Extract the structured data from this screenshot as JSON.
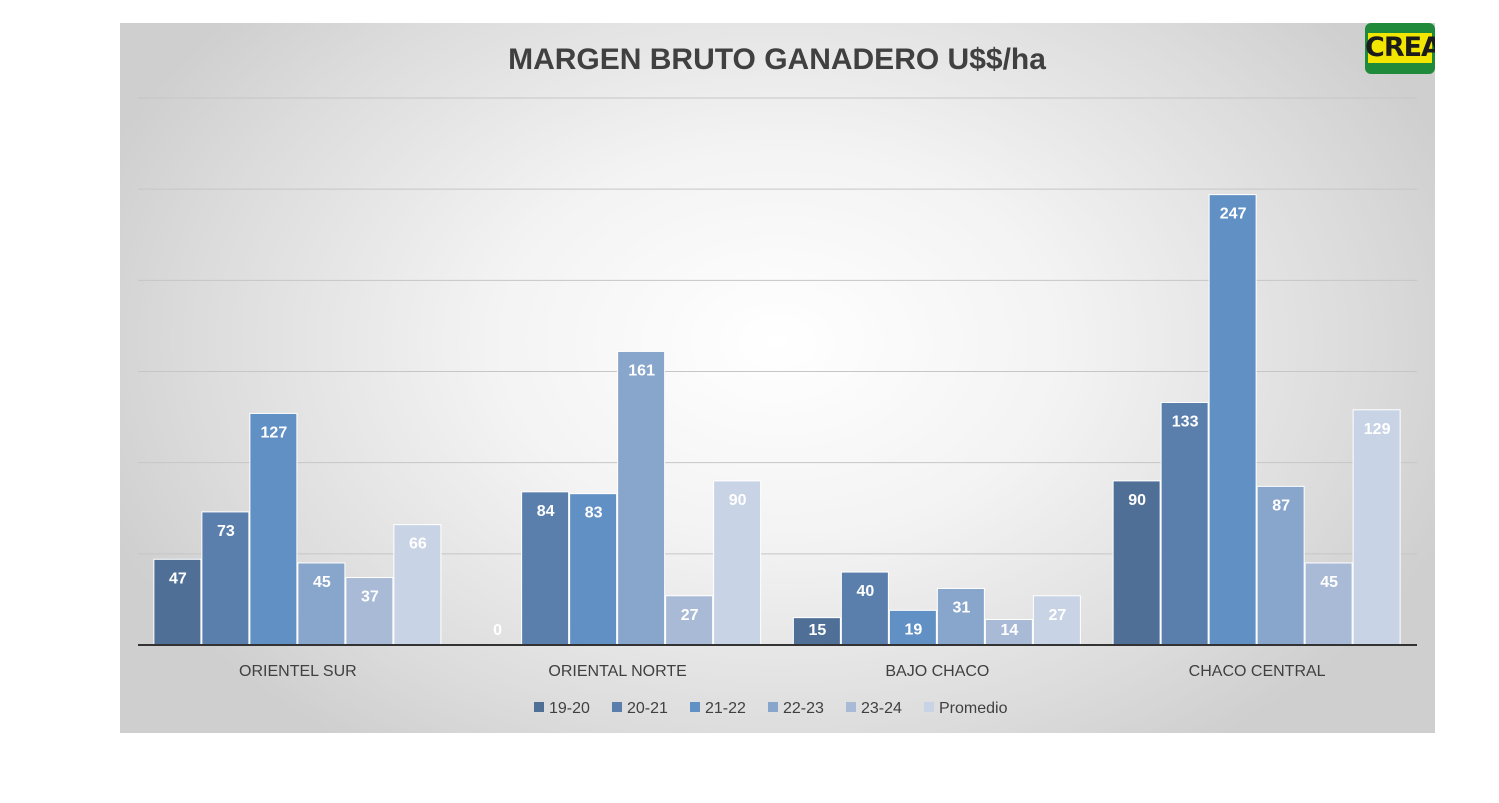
{
  "logo": {
    "text": "CREA"
  },
  "chart_data": {
    "type": "bar",
    "title": "MARGEN BRUTO GANADERO U$$/ha",
    "xlabel": "",
    "ylabel": "",
    "ylim": [
      0,
      300
    ],
    "grid": true,
    "legend_position": "bottom",
    "categories": [
      "ORIENTEL SUR",
      "ORIENTAL NORTE",
      "BAJO CHACO",
      "CHACO CENTRAL"
    ],
    "series": [
      {
        "name": "19-20",
        "color": "#4f6f96",
        "values": [
          47,
          0,
          15,
          90
        ]
      },
      {
        "name": "20-21",
        "color": "#5a7fac",
        "values": [
          73,
          84,
          40,
          133
        ]
      },
      {
        "name": "21-22",
        "color": "#6190c4",
        "values": [
          127,
          83,
          19,
          247
        ]
      },
      {
        "name": "22-23",
        "color": "#88a5cc",
        "values": [
          45,
          161,
          31,
          87
        ]
      },
      {
        "name": "23-24",
        "color": "#a9bad7",
        "values": [
          37,
          27,
          14,
          45
        ]
      },
      {
        "name": "Promedio",
        "color": "#c8d3e5",
        "values": [
          66,
          90,
          27,
          129
        ]
      }
    ]
  }
}
